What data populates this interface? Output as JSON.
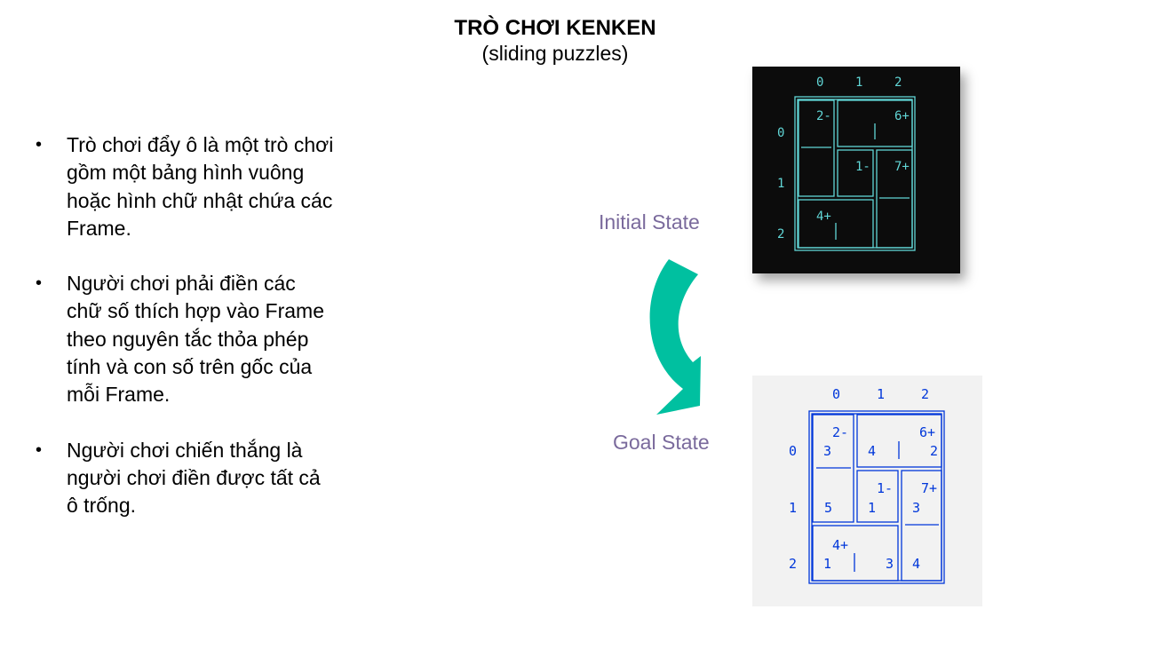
{
  "header": {
    "title": "TRÒ CHƠI KENKEN",
    "subtitle": "(sliding puzzles)"
  },
  "bullets": [
    "Trò chơi đẩy ô là một trò chơi gồm một bảng hình vuông hoặc hình chữ nhật chứa các Frame.",
    "Người chơi phải điền các chữ số thích hợp vào Frame theo nguyên tắc thỏa phép tính và con số trên gốc của mỗi Frame.",
    "Người chơi chiến thắng là người chơi điền được tất cả ô trống."
  ],
  "labels": {
    "initial": "Initial State",
    "goal": "Goal State"
  },
  "grid": {
    "col_headers": [
      "0",
      "1",
      "2"
    ],
    "row_headers": [
      "0",
      "1",
      "2"
    ],
    "cages": [
      "2-",
      "6+",
      "1-",
      "7+",
      "4+"
    ],
    "goal_values": {
      "r0c0": "3",
      "r0c1": "4",
      "r0c2": "2",
      "r1c0": "5",
      "r1c1": "1",
      "r1c2": "3",
      "r2c0": "1",
      "r2c1": "3",
      "r2c2": "4"
    }
  },
  "colors": {
    "initial_bg": "#0c0c0c",
    "initial_line": "#61d6d6",
    "goal_bg": "#f2f2f2",
    "goal_line": "#0037da",
    "arrow": "#00c0a0"
  }
}
